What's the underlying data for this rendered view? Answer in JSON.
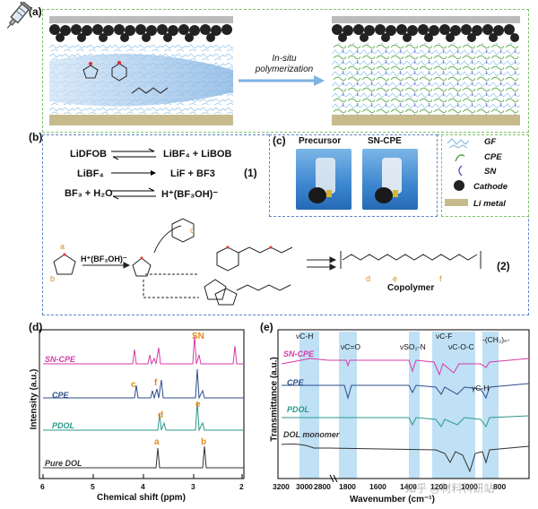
{
  "panel_a": {
    "label": "(a)",
    "arrow_text": "In-situ polymerization"
  },
  "panel_b": {
    "label": "(b)",
    "reactions": [
      {
        "left": "LiDFOB",
        "right": "LiBF₄ + LiBOB",
        "arrow": "equilibrium"
      },
      {
        "left": "LiBF₄",
        "right": "LiF + BF3",
        "arrow": "forward"
      },
      {
        "left": "BF₃ + H₂O",
        "right": "H⁺(BF₃OH)⁻",
        "arrow": "equilibrium"
      }
    ],
    "eq1": "(1)",
    "eq2": "(2)",
    "catalyst": "H⁺(BF₃OH)⁻",
    "copolymer": "Copolymer",
    "ring_labels": {
      "a": "a",
      "b": "b",
      "c": "c",
      "d": "d",
      "e": "e",
      "f": "f"
    }
  },
  "panel_c": {
    "label": "(c)",
    "photo1_title": "Precursor",
    "photo2_title": "SN-CPE"
  },
  "legend": {
    "items": [
      "GF",
      "CPE",
      "SN",
      "Cathode",
      "Li metal"
    ]
  },
  "panel_d": {
    "label": "(d)",
    "ylabel": "Intensity (a.u.)",
    "xlabel": "Chemical shift (ppm)",
    "xticks": [
      "6",
      "5",
      "4",
      "3",
      "2"
    ],
    "traces": [
      {
        "name": "SN-CPE",
        "color": "#d63ba8"
      },
      {
        "name": "CPE",
        "color": "#2d4e8a"
      },
      {
        "name": "PDOL",
        "color": "#2a9a8a"
      },
      {
        "name": "Pure DOL",
        "color": "#333333"
      }
    ],
    "peak_labels": {
      "SN": "SN",
      "c": "c",
      "f": "f",
      "d": "d",
      "e": "e",
      "a": "a",
      "b": "b"
    }
  },
  "panel_e": {
    "label": "(e)",
    "ylabel": "Transmittance (a.u.)",
    "xlabel": "Wavenumber (cm⁻¹)",
    "xticks": [
      "3200",
      "3000",
      "2800",
      "1800",
      "1600",
      "1400",
      "1200",
      "1000",
      "800"
    ],
    "traces": [
      {
        "name": "SN-CPE",
        "color": "#d63ba8"
      },
      {
        "name": "CPE",
        "color": "#2d4e8a"
      },
      {
        "name": "PDOL",
        "color": "#2a9a8a"
      },
      {
        "name": "DOL monomer",
        "color": "#333333"
      }
    ],
    "bands": [
      "νC-H",
      "νC=O",
      "νSO₂-N",
      "νC-F",
      "νC-O-C",
      "-(CH₂)ₙ-",
      "γC-H"
    ]
  },
  "watermark": "知乎 @材料科研站"
}
